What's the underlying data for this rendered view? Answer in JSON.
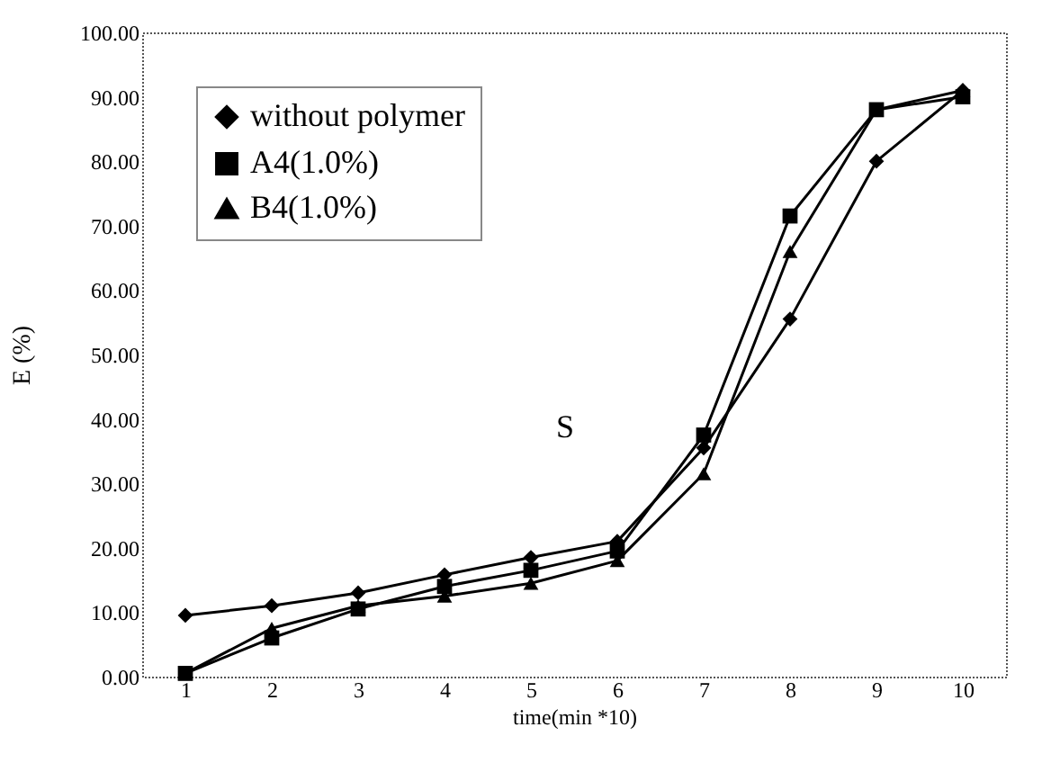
{
  "chart_data": {
    "type": "line",
    "xlabel": "time(min *10)",
    "ylabel": "E (%)",
    "categories": [
      "1",
      "2",
      "3",
      "4",
      "5",
      "6",
      "7",
      "8",
      "9",
      "10"
    ],
    "series": [
      {
        "name": "without polymer",
        "color": "#000000",
        "marker": "diamond",
        "values": [
          9.5,
          11,
          13,
          15.8,
          18.5,
          21,
          35.5,
          55.5,
          80,
          91
        ]
      },
      {
        "name": "A4(1.0%)",
        "color": "#000000",
        "marker": "square",
        "values": [
          0.5,
          6,
          10.5,
          14,
          16.5,
          19.5,
          37.5,
          71.5,
          88,
          90
        ]
      },
      {
        "name": "B4(1.0%)",
        "color": "#000000",
        "marker": "triangle",
        "values": [
          0.5,
          7.5,
          11,
          12.5,
          14.5,
          18,
          31.5,
          66,
          88,
          91
        ]
      }
    ],
    "ylim": [
      0,
      100
    ],
    "yticks": [
      {
        "value": 0,
        "label": "0.00"
      },
      {
        "value": 10,
        "label": "10.00"
      },
      {
        "value": 20,
        "label": "20.00"
      },
      {
        "value": 30,
        "label": "30.00"
      },
      {
        "value": 40,
        "label": "40.00"
      },
      {
        "value": 50,
        "label": "50.00"
      },
      {
        "value": 60,
        "label": "60.00"
      },
      {
        "value": 70,
        "label": "70.00"
      },
      {
        "value": 80,
        "label": "80.00"
      },
      {
        "value": 90,
        "label": "90.00"
      },
      {
        "value": 100,
        "label": "100.00"
      }
    ],
    "annotations": [
      "S"
    ],
    "legend": "top left",
    "grid": false,
    "line_style": "solid"
  }
}
